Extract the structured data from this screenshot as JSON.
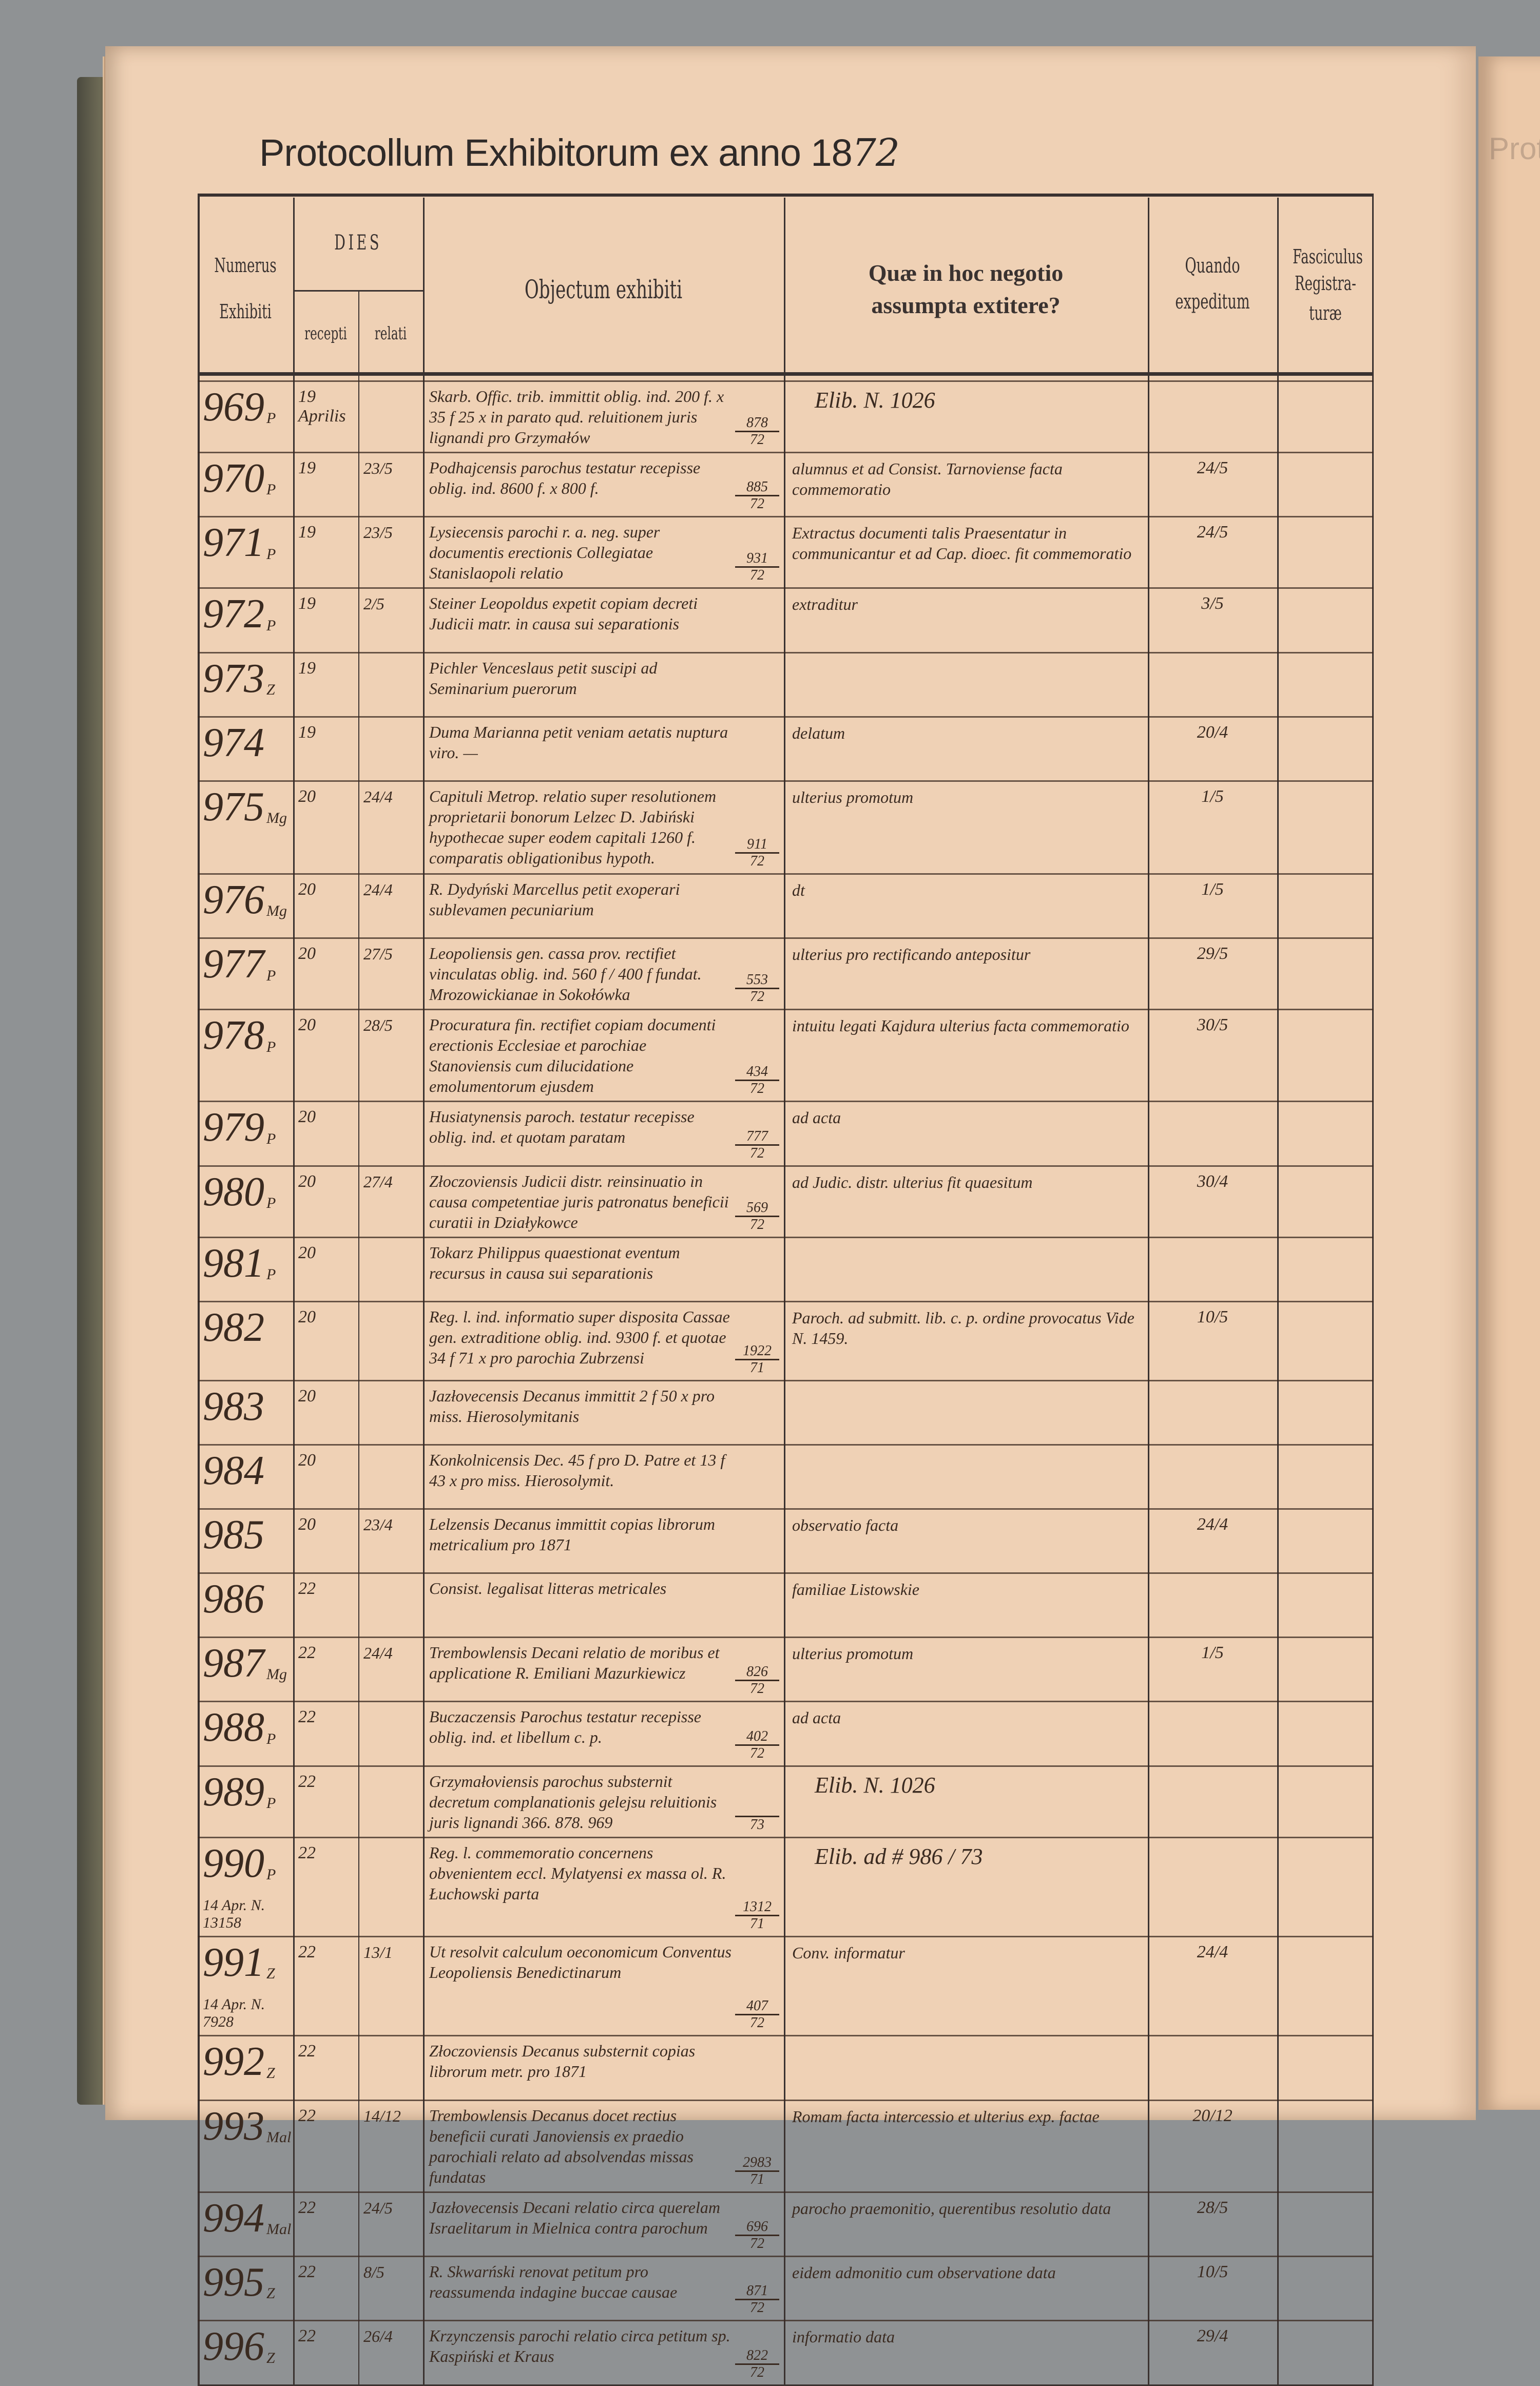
{
  "title": {
    "printed": "Protocollum Exhibitorum ex anno 18",
    "handwritten_year": "72"
  },
  "facing_page_title": "Protocollum Exhibitorum",
  "headers": {
    "numerus": "Numerus",
    "exhibiti": "Exhibiti",
    "dies": "DIES",
    "recepti": "recepti",
    "relati": "relati",
    "objectum": "Objectum exhibiti",
    "quae_line1": "Quæ in hoc negotio",
    "quae_line2": "assumpta extitere?",
    "quando_line1": "Quando",
    "quando_line2": "expeditum",
    "fasc_line1": "Fasciculus",
    "fasc_line2": "Registra-",
    "fasc_line3": "turæ"
  },
  "rows": [
    {
      "num": "969",
      "suffix": "P",
      "recepti": "19 Aprilis",
      "relati": "",
      "objectum": "Skarb. Offic. trib. immittit oblig. ind. 200 f. x 35 f 25 x in parato qud. reluitionem juris lignandi pro Grzymałów",
      "ref": [
        "878",
        "72"
      ],
      "quae": "Elib. N. 1026",
      "quae_big": true,
      "quando": "",
      "fasc": ""
    },
    {
      "num": "970",
      "suffix": "P",
      "recepti": "19",
      "relati": "23/5",
      "objectum": "Podhajcensis parochus testatur recepisse oblig. ind. 8600 f. x 800 f.",
      "ref": [
        "885",
        "72"
      ],
      "quae": "alumnus et ad Consist. Tarnoviense facta commemoratio",
      "quando": "24/5",
      "fasc": ""
    },
    {
      "num": "971",
      "suffix": "P",
      "recepti": "19",
      "relati": "23/5",
      "objectum": "Lysiecensis parochi r. a. neg. super documentis erectionis Collegiatae Stanislaopoli relatio",
      "ref": [
        "931",
        "72"
      ],
      "quae": "Extractus documenti talis Praesentatur in communicantur et ad Cap. dioec. fit commemoratio",
      "quando": "24/5",
      "fasc": ""
    },
    {
      "num": "972",
      "suffix": "P",
      "recepti": "19",
      "relati": "2/5",
      "objectum": "Steiner Leopoldus expetit copiam decreti Judicii matr. in causa sui separationis",
      "ref": null,
      "quae": "extraditur",
      "quando": "3/5",
      "fasc": ""
    },
    {
      "num": "973",
      "suffix": "Z",
      "recepti": "19",
      "relati": "",
      "objectum": "Pichler Venceslaus petit suscipi ad Seminarium puerorum",
      "ref": null,
      "quae": "",
      "quando": "",
      "fasc": ""
    },
    {
      "num": "974",
      "suffix": "",
      "recepti": "19",
      "relati": "",
      "objectum": "Duma Marianna petit veniam aetatis nuptura viro. —",
      "ref": null,
      "quae": "delatum",
      "quando": "20/4",
      "fasc": ""
    },
    {
      "num": "975",
      "suffix": "Mg",
      "recepti": "20",
      "relati": "24/4",
      "objectum": "Capituli Metrop. relatio super resolutionem proprietarii bonorum Lelzec D. Jabiński hypothecae super eodem capitali 1260 f. comparatis obligationibus hypoth.",
      "ref": [
        "911",
        "72"
      ],
      "quae": "ulterius promotum",
      "quando": "1/5",
      "fasc": ""
    },
    {
      "num": "976",
      "suffix": "Mg",
      "recepti": "20",
      "relati": "24/4",
      "objectum": "R. Dydyński Marcellus petit exoperari sublevamen pecuniarium",
      "ref": null,
      "quae": "dt",
      "quando": "1/5",
      "fasc": ""
    },
    {
      "num": "977",
      "suffix": "P",
      "recepti": "20",
      "relati": "27/5",
      "objectum": "Leopoliensis gen. cassa prov. rectifiet vinculatas oblig. ind. 560 f / 400 f fundat. Mrozowickianae in Sokołówka",
      "ref": [
        "553",
        "72"
      ],
      "quae": "ulterius pro rectificando antepositur",
      "quando": "29/5",
      "fasc": ""
    },
    {
      "num": "978",
      "suffix": "P",
      "recepti": "20",
      "relati": "28/5",
      "objectum": "Procuratura fin. rectifiet copiam documenti erectionis Ecclesiae et parochiae Stanoviensis cum dilucidatione emolumentorum ejusdem",
      "ref": [
        "434",
        "72"
      ],
      "quae": "intuitu legati Kajdura ulterius facta commemoratio",
      "quando": "30/5",
      "fasc": ""
    },
    {
      "num": "979",
      "suffix": "P",
      "recepti": "20",
      "relati": "",
      "objectum": "Husiatynensis paroch. testatur recepisse oblig. ind. et quotam paratam",
      "ref": [
        "777",
        "72"
      ],
      "quae": "ad acta",
      "quando": "",
      "fasc": ""
    },
    {
      "num": "980",
      "suffix": "P",
      "recepti": "20",
      "relati": "27/4",
      "objectum": "Złoczoviensis Judicii distr. reinsinuatio in causa competentiae juris patronatus beneficii curatii in Działykowce",
      "ref": [
        "569",
        "72"
      ],
      "quae": "ad Judic. distr. ulterius fit quaesitum",
      "quando": "30/4",
      "fasc": ""
    },
    {
      "num": "981",
      "suffix": "P",
      "recepti": "20",
      "relati": "",
      "objectum": "Tokarz Philippus quaestionat eventum recursus in causa sui separationis",
      "ref": null,
      "quae": "",
      "quando": "",
      "fasc": ""
    },
    {
      "num": "982",
      "suffix": "",
      "recepti": "20",
      "relati": "",
      "objectum": "Reg. l. ind. informatio super disposita Cassae gen. extraditione oblig. ind. 9300 f. et quotae 34 f 71 x pro parochia Zubrzensi",
      "ref": [
        "1922",
        "71"
      ],
      "quae": "Paroch. ad submitt. lib. c. p. ordine provocatus Vide N. 1459.",
      "quando": "10/5",
      "fasc": ""
    },
    {
      "num": "983",
      "suffix": "",
      "recepti": "20",
      "relati": "",
      "objectum": "Jazłovecensis Decanus immittit 2 f 50 x pro miss. Hierosolymitanis",
      "ref": null,
      "quae": "",
      "quando": "",
      "fasc": ""
    },
    {
      "num": "984",
      "suffix": "",
      "recepti": "20",
      "relati": "",
      "objectum": "Konkolnicensis Dec. 45 f pro D. Patre et 13 f 43 x pro miss. Hierosolymit.",
      "ref": null,
      "quae": "",
      "quando": "",
      "fasc": ""
    },
    {
      "num": "985",
      "suffix": "",
      "recepti": "20",
      "relati": "23/4",
      "objectum": "Lelzensis Decanus immittit copias librorum metricalium pro 1871",
      "ref": null,
      "quae": "observatio facta",
      "quando": "24/4",
      "fasc": ""
    },
    {
      "num": "986",
      "suffix": "",
      "recepti": "22",
      "relati": "",
      "objectum": "Consist. legalisat litteras metricales",
      "ref": null,
      "quae": "familiae Listowskie",
      "quando": "",
      "fasc": ""
    },
    {
      "num": "987",
      "suffix": "Mg",
      "recepti": "22",
      "relati": "24/4",
      "objectum": "Trembowlensis Decani relatio de moribus et applicatione R. Emiliani Mazurkiewicz",
      "ref": [
        "826",
        "72"
      ],
      "quae": "ulterius promotum",
      "quando": "1/5",
      "fasc": ""
    },
    {
      "num": "988",
      "suffix": "P",
      "recepti": "22",
      "relati": "",
      "objectum": "Buczaczensis Parochus testatur recepisse oblig. ind. et libellum c. p.",
      "ref": [
        "402",
        "72"
      ],
      "quae": "ad acta",
      "quando": "",
      "fasc": ""
    },
    {
      "num": "989",
      "suffix": "P",
      "recepti": "22",
      "relati": "",
      "objectum": "Grzymałoviensis parochus substernit decretum complanationis gelejsu reluitionis juris lignandi 366. 878. 969",
      "ref": [
        "",
        "73"
      ],
      "quae": "Elib. N. 1026",
      "quae_big": true,
      "quando": "",
      "fasc": ""
    },
    {
      "num": "990",
      "suffix": "P",
      "note": "14 Apr. N. 13158",
      "recepti": "22",
      "relati": "",
      "objectum": "Reg. l. commemoratio concernens obvenientem eccl. Mylatyensi ex massa ol. R. Łuchowski parta",
      "ref": [
        "1312",
        "71"
      ],
      "quae": "Elib. ad # 986 / 73",
      "quae_big": true,
      "quando": "",
      "fasc": ""
    },
    {
      "num": "991",
      "suffix": "Z",
      "note": "14 Apr. N. 7928",
      "recepti": "22",
      "relati": "13/1",
      "objectum": "Ut resolvit calculum oeconomicum Conventus Leopoliensis Benedictinarum",
      "ref": [
        "407",
        "72"
      ],
      "quae": "Conv. informatur",
      "quando": "24/4",
      "fasc": ""
    },
    {
      "num": "992",
      "suffix": "Z",
      "recepti": "22",
      "relati": "",
      "objectum": "Złoczoviensis Decanus substernit copias librorum metr. pro 1871",
      "ref": null,
      "quae": "",
      "quando": "",
      "fasc": ""
    },
    {
      "num": "993",
      "suffix": "Mal",
      "recepti": "22",
      "relati": "14/12",
      "objectum": "Trembowlensis Decanus docet rectius beneficii curati Janoviensis ex praedio parochiali relato ad absolvendas missas fundatas",
      "ref": [
        "2983",
        "71"
      ],
      "quae": "Romam facta intercessio et ulterius exp. factae",
      "quando": "20/12",
      "fasc": ""
    },
    {
      "num": "994",
      "suffix": "Mal",
      "recepti": "22",
      "relati": "24/5",
      "objectum": "Jazłovecensis Decani relatio circa querelam Israelitarum in Mielnica contra parochum",
      "ref": [
        "696",
        "72"
      ],
      "quae": "parocho praemonitio, querentibus resolutio data",
      "quando": "28/5",
      "fasc": ""
    },
    {
      "num": "995",
      "suffix": "Z",
      "recepti": "22",
      "relati": "8/5",
      "objectum": "R. Skwarński renovat petitum pro reassumenda indagine buccae causae",
      "ref": [
        "871",
        "72"
      ],
      "quae": "eidem admonitio cum observatione data",
      "quando": "10/5",
      "fasc": ""
    },
    {
      "num": "996",
      "suffix": "Z",
      "recepti": "22",
      "relati": "26/4",
      "objectum": "Krzynczensis parochi relatio circa petitum sp. Kaspiński et Kraus",
      "ref": [
        "822",
        "72"
      ],
      "quae": "informatio data",
      "quando": "29/4",
      "fasc": ""
    }
  ],
  "colors": {
    "paper": "#efd1b5",
    "ink": "#3a2a20",
    "print": "#3a3230",
    "background": "#8f9294"
  }
}
